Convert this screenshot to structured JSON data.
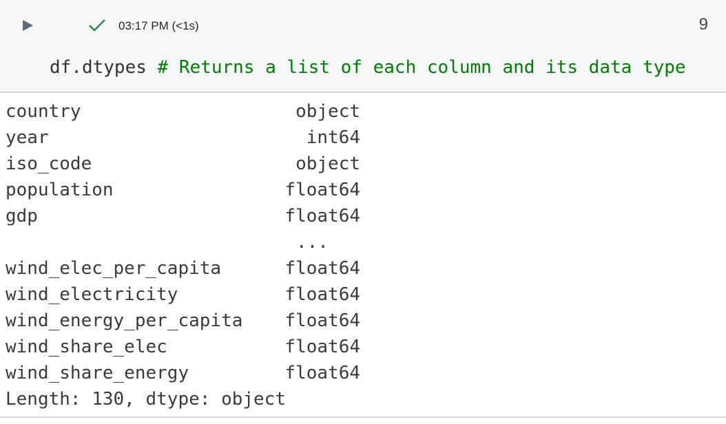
{
  "cell": {
    "status_icon": "check-icon",
    "status_color": "#2e8540",
    "time": "03:17 PM (<1s)",
    "execution_count": "9",
    "code": "df.dtypes",
    "comment": "# Returns a list of each column and its data type"
  },
  "output": {
    "rows_top": [
      {
        "name": "country",
        "dtype": "object"
      },
      {
        "name": "year",
        "dtype": "int64"
      },
      {
        "name": "iso_code",
        "dtype": "object"
      },
      {
        "name": "population",
        "dtype": "float64"
      },
      {
        "name": "gdp",
        "dtype": "float64"
      }
    ],
    "ellipsis": "...",
    "rows_bottom": [
      {
        "name": "wind_elec_per_capita",
        "dtype": "float64"
      },
      {
        "name": "wind_electricity",
        "dtype": "float64"
      },
      {
        "name": "wind_energy_per_capita",
        "dtype": "float64"
      },
      {
        "name": "wind_share_elec",
        "dtype": "float64"
      },
      {
        "name": "wind_share_energy",
        "dtype": "float64"
      }
    ],
    "footer": "Length: 130, dtype: object"
  }
}
